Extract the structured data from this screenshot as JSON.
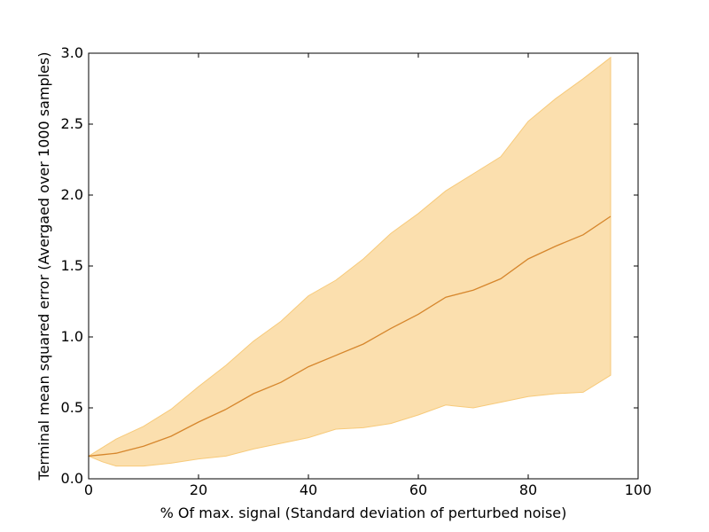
{
  "chart_data": {
    "type": "area",
    "title": "",
    "xlabel": "% Of max. signal (Standard deviation of perturbed noise)",
    "ylabel": "Terminal mean squared error (Avergaed over 1000 samples)",
    "xlim": [
      0,
      100
    ],
    "ylim": [
      0.0,
      3.0
    ],
    "xticks": [
      0,
      20,
      40,
      60,
      80,
      100
    ],
    "xtick_labels": [
      "0",
      "20",
      "40",
      "60",
      "80",
      "100"
    ],
    "yticks": [
      0.0,
      0.5,
      1.0,
      1.5,
      2.0,
      2.5,
      3.0
    ],
    "ytick_labels": [
      "0.0",
      "0.5",
      "1.0",
      "1.5",
      "2.0",
      "2.5",
      "3.0"
    ],
    "grid": false,
    "legend": "none",
    "x": [
      0,
      2.5,
      5,
      10,
      15,
      20,
      25,
      30,
      35,
      40,
      45,
      50,
      55,
      60,
      65,
      70,
      75,
      80,
      85,
      90,
      95
    ],
    "series": [
      {
        "role": "mean",
        "values": [
          0.16,
          0.17,
          0.18,
          0.23,
          0.3,
          0.4,
          0.49,
          0.6,
          0.68,
          0.79,
          0.87,
          0.95,
          1.06,
          1.16,
          1.28,
          1.33,
          1.41,
          1.55,
          1.64,
          1.72,
          1.85
        ],
        "color": "#d6862c"
      },
      {
        "role": "upper",
        "values": [
          0.16,
          0.22,
          0.28,
          0.37,
          0.49,
          0.65,
          0.8,
          0.97,
          1.11,
          1.29,
          1.4,
          1.55,
          1.73,
          1.87,
          2.03,
          2.15,
          2.27,
          2.52,
          2.68,
          2.82,
          2.97
        ],
        "color": "#ffe0ad"
      },
      {
        "role": "lower",
        "values": [
          0.16,
          0.12,
          0.09,
          0.09,
          0.11,
          0.14,
          0.16,
          0.21,
          0.25,
          0.29,
          0.35,
          0.36,
          0.39,
          0.45,
          0.52,
          0.5,
          0.54,
          0.58,
          0.6,
          0.61,
          0.73
        ],
        "color": "#ffe0ad"
      }
    ],
    "band_fill_color": "#fbdfae",
    "band_edge_color": "#f7ca7a",
    "mean_line_color": "#d6862c"
  }
}
